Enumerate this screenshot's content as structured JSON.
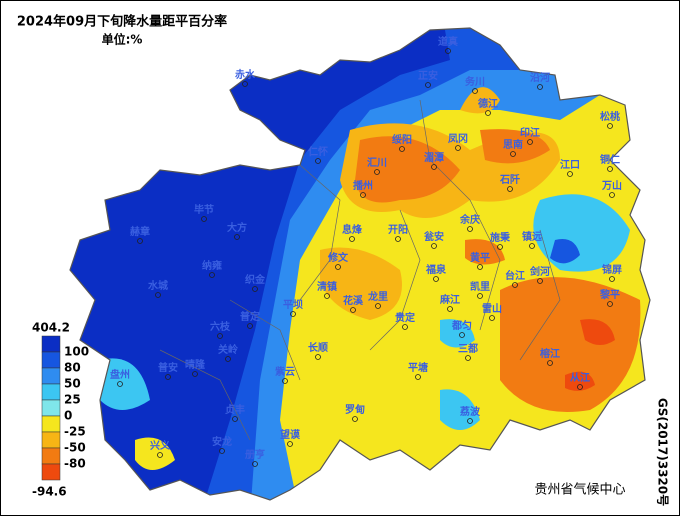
{
  "header": {
    "title": "2024年09月下旬降水量距平百分率",
    "unit": "单位:%"
  },
  "legend": {
    "max": 404.2,
    "ticks": [
      100,
      80,
      50,
      25,
      0,
      -25,
      -50,
      -80
    ],
    "min": -94.6,
    "colors": [
      "#0b2ec4",
      "#1656e0",
      "#2f8cf0",
      "#3cc6f2",
      "#7fe6ea",
      "#f5e61e",
      "#f7b515",
      "#f27b12",
      "#ee4a0e"
    ]
  },
  "stations": [
    "道真",
    "赤水",
    "正安",
    "务川",
    "沿河",
    "德江",
    "印江",
    "松桃",
    "思南",
    "凤冈",
    "湄潭",
    "绥阳",
    "仁怀",
    "汇川",
    "播州",
    "石阡",
    "江口",
    "铜仁",
    "万山",
    "毕节",
    "大方",
    "赫章",
    "纳雍",
    "水城",
    "织金",
    "六枝",
    "普定",
    "晴隆",
    "普安",
    "盘州",
    "兴义",
    "安龙",
    "贞丰",
    "册亨",
    "望谟",
    "关岭",
    "紫云",
    "长顺",
    "罗甸",
    "平塘",
    "荔波",
    "三都",
    "都匀",
    "麻江",
    "凯里",
    "雷山",
    "榕江",
    "从江",
    "黎平",
    "锦屏",
    "剑河",
    "台江",
    "黄平",
    "施秉",
    "镇远",
    "余庆",
    "瓮安",
    "福泉",
    "龙里",
    "开阳",
    "息烽",
    "修文",
    "清镇",
    "花溪",
    "平坝",
    "贵定"
  ],
  "footer": {
    "source": "贵州省气候中心",
    "map_number": "GS(2017)3320号"
  }
}
